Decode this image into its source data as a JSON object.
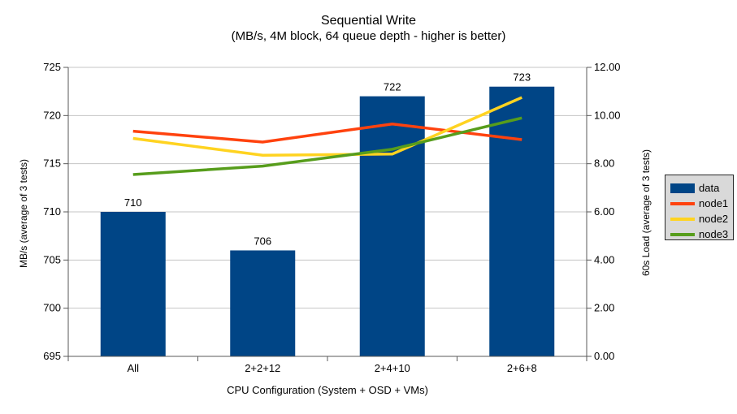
{
  "chart_data": {
    "type": "bar+line",
    "title": "Sequential Write",
    "subtitle": "(MB/s, 4M block, 64 queue depth - higher is better)",
    "categories": [
      "All",
      "2+2+12",
      "2+4+10",
      "2+6+8"
    ],
    "xlabel": "CPU Configuration (System + OSD + VMs)",
    "ylabel_left": "MB/s (average of 3 tests)",
    "ylabel_right": "60s Load (average of 3 tests)",
    "y_left_axis": {
      "min": 695,
      "max": 725,
      "step": 5,
      "ticks": [
        "695",
        "700",
        "705",
        "710",
        "715",
        "720",
        "725"
      ]
    },
    "y_right_axis": {
      "min": 0,
      "max": 12,
      "step": 2,
      "ticks": [
        "0.00",
        "2.00",
        "4.00",
        "6.00",
        "8.00",
        "10.00",
        "12.00"
      ]
    },
    "bar_series": {
      "name": "data",
      "axis": "left",
      "color": "#004586",
      "values": [
        710,
        706,
        722,
        723
      ],
      "labels": [
        "710",
        "706",
        "722",
        "723"
      ]
    },
    "line_series": [
      {
        "name": "node1",
        "axis": "right",
        "color": "#ff420e",
        "values": [
          9.35,
          8.9,
          9.65,
          9.0
        ]
      },
      {
        "name": "node2",
        "axis": "right",
        "color": "#ffd320",
        "values": [
          9.05,
          8.35,
          8.4,
          10.75
        ]
      },
      {
        "name": "node3",
        "axis": "right",
        "color": "#579d1c",
        "values": [
          7.55,
          7.9,
          8.6,
          9.9
        ]
      }
    ],
    "legend": {
      "position": "right",
      "entries": [
        "data",
        "node1",
        "node2",
        "node3"
      ]
    },
    "grid": true,
    "colors": {
      "background": "#ffffff",
      "grid": "#c5c5c5",
      "axis": "#595959",
      "text": "#000000",
      "legend_bg": "#d9d9d9",
      "legend_border": "#262626"
    }
  }
}
